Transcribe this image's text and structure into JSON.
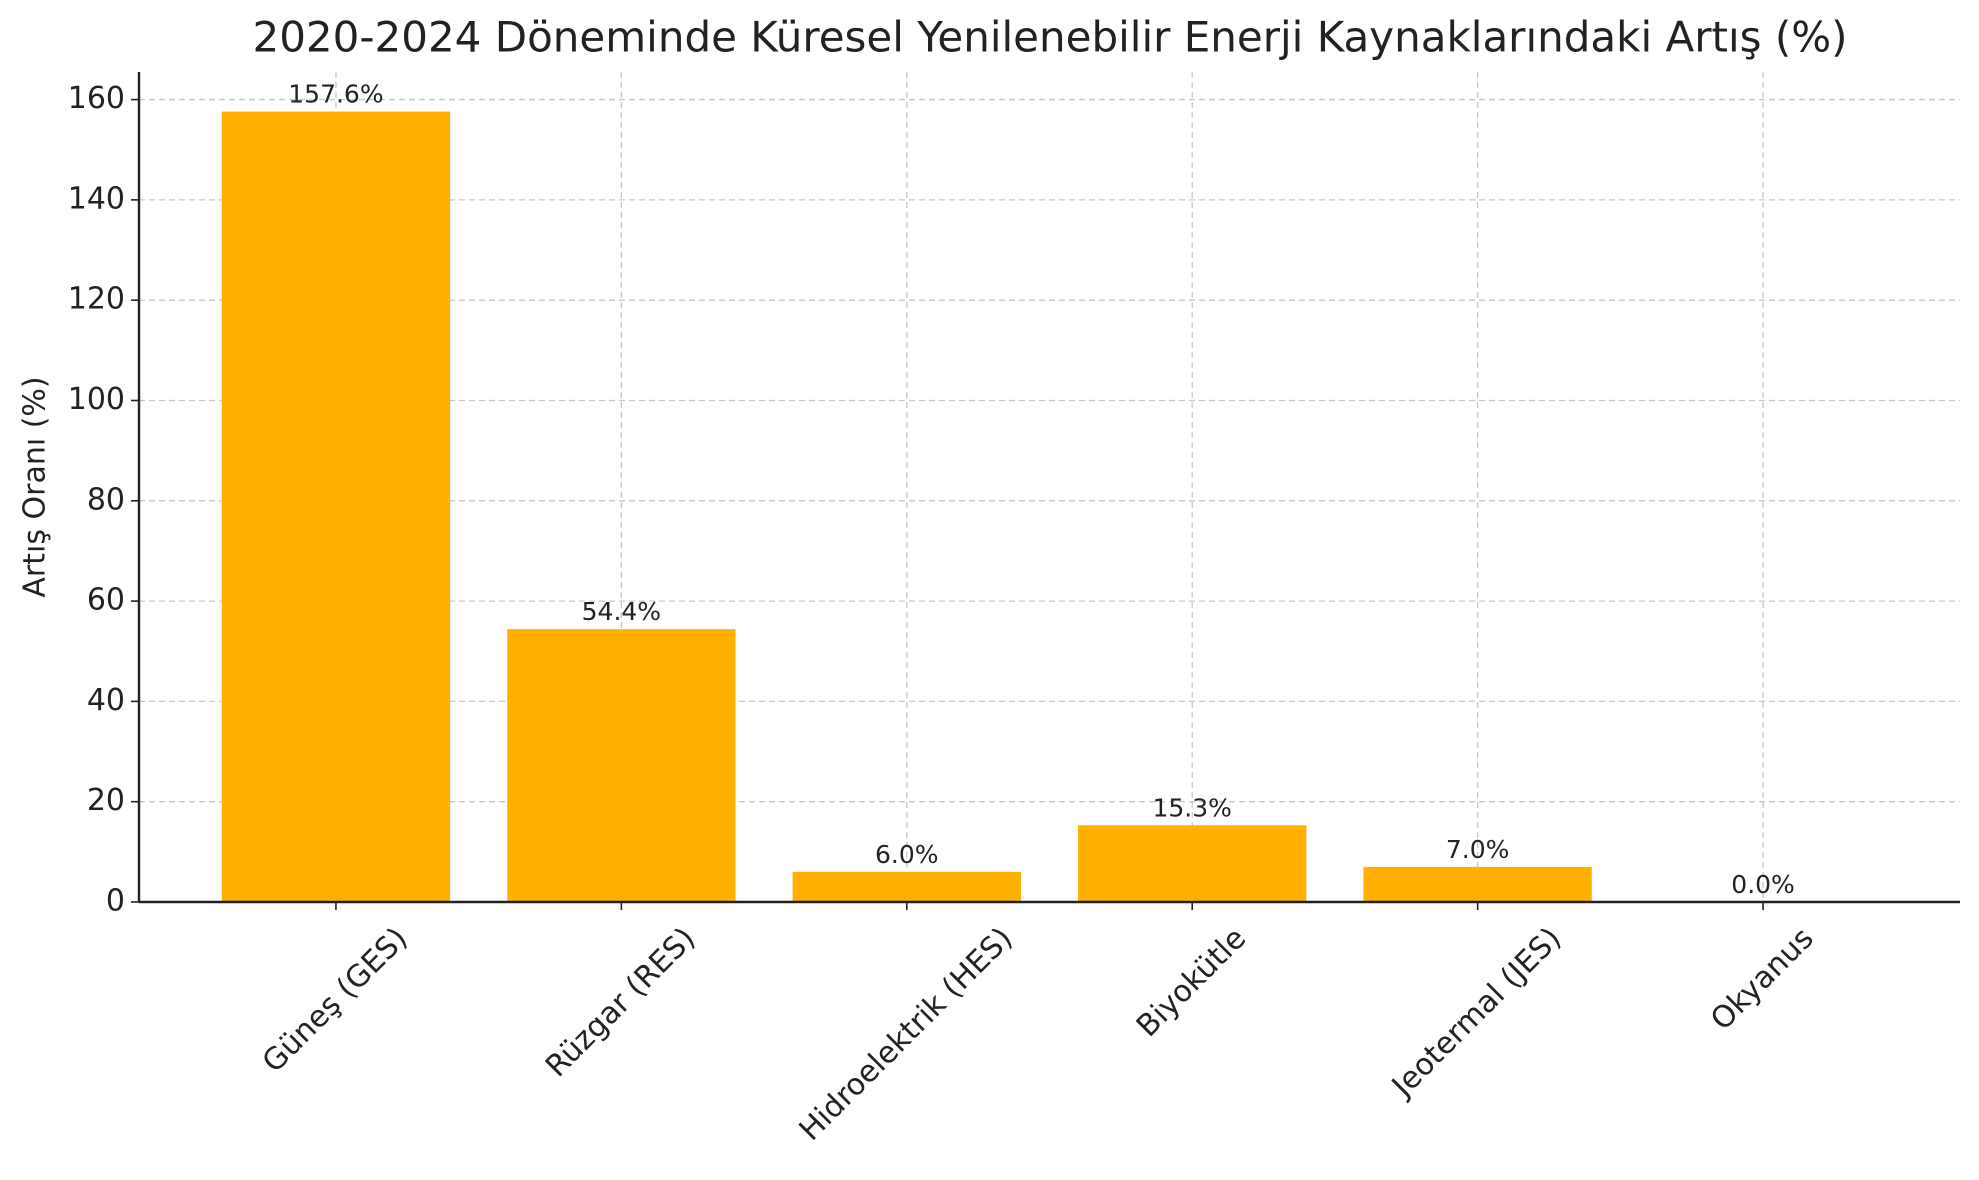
{
  "chart_data": {
    "type": "bar",
    "title": "2020-2024 Döneminde Küresel Yenilenebilir Enerji Kaynaklarındaki Artış (%)",
    "y_label": "Artış Oranı (%)",
    "categories": [
      "Güneş (GES)",
      "Rüzgar (RES)",
      "Hidroelektrik (HES)",
      "Biyokütle",
      "Jeotermal (JES)",
      "Okyanus"
    ],
    "values": [
      157.6,
      54.4,
      6.0,
      15.3,
      7.0,
      0.0
    ],
    "value_labels": [
      "157.6%",
      "54.4%",
      "6.0%",
      "15.3%",
      "7.0%",
      "0.0%"
    ],
    "color": "#ffb000",
    "ylim": [
      0,
      165.5
    ],
    "yticks": [
      0,
      20,
      40,
      60,
      80,
      100,
      120,
      140,
      160
    ],
    "grid": true
  }
}
